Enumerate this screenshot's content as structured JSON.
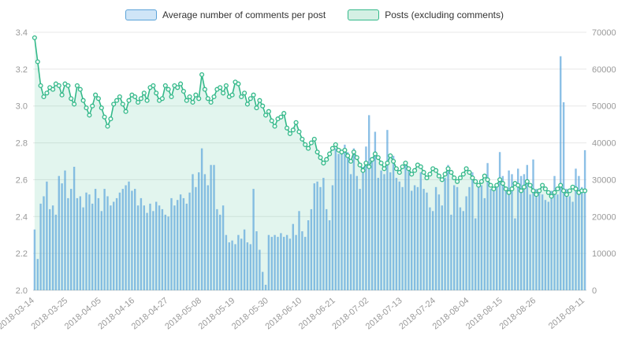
{
  "legend": {
    "items": [
      {
        "label": "Average number of comments per post",
        "stroke": "#5ba3d9",
        "fill": "#cfe5f7"
      },
      {
        "label": "Posts (excluding comments)",
        "stroke": "#34b98a",
        "fill": "#d4f0e4"
      }
    ]
  },
  "chart_data": {
    "type": "combo",
    "title": "",
    "xlabel": "",
    "ylabel_left": "",
    "ylabel_right": "",
    "grid": true,
    "legend_position": "top-center",
    "left_axis": {
      "min": 2.0,
      "max": 3.4,
      "ticks": [
        2.0,
        2.2,
        2.4,
        2.6,
        2.8,
        3.0,
        3.2,
        3.4
      ]
    },
    "right_axis": {
      "min": 0,
      "max": 70000,
      "ticks": [
        0,
        10000,
        20000,
        30000,
        40000,
        50000,
        60000,
        70000
      ]
    },
    "x_tick_indices": [
      0,
      11,
      22,
      33,
      44,
      55,
      66,
      77,
      88,
      99,
      110,
      121,
      132,
      143,
      154,
      165,
      181
    ],
    "x": [
      "2018-03-14",
      "2018-03-15",
      "2018-03-16",
      "2018-03-17",
      "2018-03-18",
      "2018-03-19",
      "2018-03-20",
      "2018-03-21",
      "2018-03-22",
      "2018-03-23",
      "2018-03-24",
      "2018-03-25",
      "2018-03-26",
      "2018-03-27",
      "2018-03-28",
      "2018-03-29",
      "2018-03-30",
      "2018-03-31",
      "2018-04-01",
      "2018-04-02",
      "2018-04-03",
      "2018-04-04",
      "2018-04-05",
      "2018-04-06",
      "2018-04-07",
      "2018-04-08",
      "2018-04-09",
      "2018-04-10",
      "2018-04-11",
      "2018-04-12",
      "2018-04-13",
      "2018-04-14",
      "2018-04-15",
      "2018-04-16",
      "2018-04-17",
      "2018-04-18",
      "2018-04-19",
      "2018-04-20",
      "2018-04-21",
      "2018-04-22",
      "2018-04-23",
      "2018-04-24",
      "2018-04-25",
      "2018-04-26",
      "2018-04-27",
      "2018-04-28",
      "2018-04-29",
      "2018-04-30",
      "2018-05-01",
      "2018-05-02",
      "2018-05-03",
      "2018-05-04",
      "2018-05-05",
      "2018-05-06",
      "2018-05-07",
      "2018-05-08",
      "2018-05-09",
      "2018-05-10",
      "2018-05-11",
      "2018-05-12",
      "2018-05-13",
      "2018-05-14",
      "2018-05-15",
      "2018-05-16",
      "2018-05-17",
      "2018-05-18",
      "2018-05-19",
      "2018-05-20",
      "2018-05-21",
      "2018-05-22",
      "2018-05-23",
      "2018-05-24",
      "2018-05-25",
      "2018-05-26",
      "2018-05-27",
      "2018-05-28",
      "2018-05-29",
      "2018-05-30",
      "2018-05-31",
      "2018-06-01",
      "2018-06-02",
      "2018-06-03",
      "2018-06-04",
      "2018-06-05",
      "2018-06-06",
      "2018-06-07",
      "2018-06-08",
      "2018-06-09",
      "2018-06-10",
      "2018-06-11",
      "2018-06-12",
      "2018-06-13",
      "2018-06-14",
      "2018-06-15",
      "2018-06-16",
      "2018-06-17",
      "2018-06-18",
      "2018-06-19",
      "2018-06-20",
      "2018-06-21",
      "2018-06-22",
      "2018-06-23",
      "2018-06-24",
      "2018-06-25",
      "2018-06-26",
      "2018-06-27",
      "2018-06-28",
      "2018-06-29",
      "2018-06-30",
      "2018-07-01",
      "2018-07-02",
      "2018-07-03",
      "2018-07-04",
      "2018-07-05",
      "2018-07-06",
      "2018-07-07",
      "2018-07-08",
      "2018-07-09",
      "2018-07-10",
      "2018-07-11",
      "2018-07-12",
      "2018-07-13",
      "2018-07-14",
      "2018-07-15",
      "2018-07-16",
      "2018-07-17",
      "2018-07-18",
      "2018-07-19",
      "2018-07-20",
      "2018-07-21",
      "2018-07-22",
      "2018-07-23",
      "2018-07-24",
      "2018-07-25",
      "2018-07-26",
      "2018-07-27",
      "2018-07-28",
      "2018-07-29",
      "2018-07-30",
      "2018-07-31",
      "2018-08-01",
      "2018-08-02",
      "2018-08-03",
      "2018-08-04",
      "2018-08-05",
      "2018-08-06",
      "2018-08-07",
      "2018-08-08",
      "2018-08-09",
      "2018-08-10",
      "2018-08-11",
      "2018-08-12",
      "2018-08-13",
      "2018-08-14",
      "2018-08-15",
      "2018-08-16",
      "2018-08-17",
      "2018-08-18",
      "2018-08-19",
      "2018-08-20",
      "2018-08-21",
      "2018-08-22",
      "2018-08-23",
      "2018-08-24",
      "2018-08-25",
      "2018-08-26",
      "2018-08-27",
      "2018-08-28",
      "2018-08-29",
      "2018-08-30",
      "2018-08-31",
      "2018-09-01",
      "2018-09-02",
      "2018-09-03",
      "2018-09-04",
      "2018-09-05",
      "2018-09-06",
      "2018-09-07",
      "2018-09-08",
      "2018-09-09",
      "2018-09-10",
      "2018-09-11"
    ],
    "series": [
      {
        "name": "Average number of comments per post",
        "type": "bar",
        "axis": "left",
        "color": "#5ba3d9",
        "values": [
          2.33,
          2.17,
          2.47,
          2.51,
          2.59,
          2.44,
          2.46,
          2.41,
          2.62,
          2.58,
          2.65,
          2.5,
          2.55,
          2.67,
          2.5,
          2.51,
          2.45,
          2.53,
          2.52,
          2.47,
          2.55,
          2.5,
          2.43,
          2.55,
          2.51,
          2.46,
          2.48,
          2.5,
          2.53,
          2.55,
          2.57,
          2.59,
          2.54,
          2.55,
          2.46,
          2.5,
          2.46,
          2.42,
          2.47,
          2.43,
          2.48,
          2.46,
          2.44,
          2.41,
          2.4,
          2.5,
          2.46,
          2.49,
          2.52,
          2.5,
          2.47,
          2.53,
          2.63,
          2.56,
          2.64,
          2.77,
          2.63,
          2.57,
          2.68,
          2.68,
          2.44,
          2.41,
          2.46,
          2.3,
          2.26,
          2.27,
          2.25,
          2.3,
          2.28,
          2.33,
          2.26,
          2.25,
          2.55,
          2.32,
          2.22,
          2.1,
          2.03,
          2.3,
          2.29,
          2.3,
          2.29,
          2.31,
          2.29,
          2.3,
          2.28,
          2.36,
          2.3,
          2.43,
          2.32,
          2.29,
          2.38,
          2.44,
          2.58,
          2.59,
          2.56,
          2.61,
          2.44,
          2.38,
          2.57,
          2.77,
          2.74,
          2.76,
          2.79,
          2.75,
          2.63,
          2.77,
          2.62,
          2.55,
          2.67,
          2.78,
          2.95,
          2.71,
          2.86,
          2.61,
          2.65,
          2.63,
          2.87,
          2.64,
          2.73,
          2.61,
          2.59,
          2.56,
          2.7,
          2.65,
          2.54,
          2.57,
          2.56,
          2.64,
          2.55,
          2.53,
          2.45,
          2.43,
          2.56,
          2.52,
          2.46,
          2.61,
          2.68,
          2.41,
          2.57,
          2.56,
          2.45,
          2.43,
          2.51,
          2.56,
          2.64,
          2.39,
          2.56,
          2.57,
          2.5,
          2.69,
          2.55,
          2.56,
          2.57,
          2.75,
          2.62,
          2.55,
          2.65,
          2.63,
          2.39,
          2.66,
          2.62,
          2.63,
          2.68,
          2.52,
          2.71,
          2.55,
          2.53,
          2.52,
          2.49,
          2.48,
          2.54,
          2.62,
          2.52,
          3.27,
          3.02,
          2.55,
          2.51,
          2.48,
          2.66,
          2.62,
          2.56,
          2.76
        ]
      },
      {
        "name": "Posts (excluding comments)",
        "type": "line-area",
        "axis": "right",
        "color": "#34b98a",
        "area_fill": "rgba(52,185,138,0.14)",
        "marker": "circle",
        "values": [
          68500,
          62000,
          55500,
          52500,
          53500,
          55000,
          54500,
          56000,
          55500,
          53000,
          56000,
          55500,
          52000,
          50500,
          55500,
          54500,
          51500,
          49500,
          47500,
          50000,
          53000,
          52000,
          49500,
          47000,
          44500,
          46500,
          50500,
          51500,
          52500,
          50500,
          48500,
          51500,
          53000,
          52500,
          51000,
          52000,
          53500,
          51500,
          55000,
          55500,
          53500,
          51500,
          52000,
          55500,
          54500,
          52500,
          55500,
          55000,
          56000,
          54000,
          51500,
          52500,
          51000,
          53000,
          52000,
          58500,
          54500,
          52000,
          51000,
          52500,
          54500,
          55000,
          53500,
          55500,
          52500,
          53000,
          56500,
          56000,
          52500,
          53500,
          50500,
          52000,
          53000,
          49500,
          51500,
          50000,
          47500,
          48500,
          46000,
          44500,
          46500,
          47000,
          48000,
          44000,
          42500,
          43500,
          45500,
          43000,
          41000,
          39500,
          38500,
          40000,
          41000,
          37500,
          36000,
          34500,
          35500,
          37000,
          38500,
          39500,
          38000,
          37500,
          38000,
          36500,
          35000,
          37500,
          36000,
          34000,
          32500,
          34500,
          33500,
          35500,
          37000,
          36000,
          34500,
          33000,
          34500,
          36500,
          35000,
          33000,
          32000,
          33500,
          34500,
          33000,
          31500,
          32500,
          34000,
          33500,
          32000,
          30500,
          31500,
          33000,
          32500,
          31000,
          30000,
          31500,
          33000,
          32000,
          30500,
          29500,
          30500,
          31500,
          33000,
          32000,
          30500,
          29500,
          28500,
          29500,
          31000,
          30000,
          28500,
          27500,
          28500,
          30000,
          29000,
          27500,
          26500,
          27500,
          29000,
          28500,
          27000,
          28000,
          29500,
          28500,
          27000,
          26000,
          27000,
          28500,
          27500,
          26500,
          25500,
          26500,
          27500,
          28500,
          27000,
          26000,
          27000,
          28000,
          27500,
          26500,
          27000,
          27000
        ]
      }
    ]
  },
  "colors": {
    "grid": "#e8e8e8",
    "axis_line": "#d0d0d0",
    "tick_label": "#999999",
    "bar_fill": "#5fa8dc",
    "line": "#34b98a",
    "marker_fill": "#f2fbf7"
  }
}
